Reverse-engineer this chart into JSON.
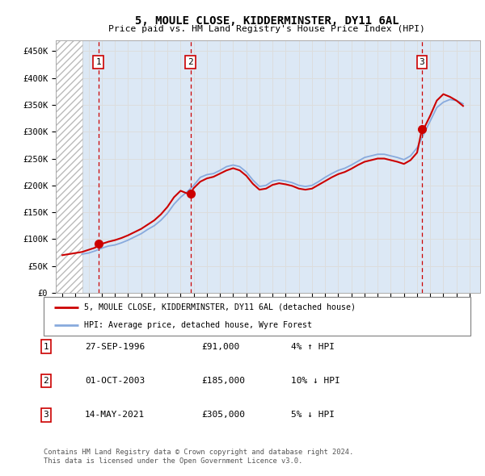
{
  "title": "5, MOULE CLOSE, KIDDERMINSTER, DY11 6AL",
  "subtitle": "Price paid vs. HM Land Registry's House Price Index (HPI)",
  "ylabel_ticks": [
    "£0",
    "£50K",
    "£100K",
    "£150K",
    "£200K",
    "£250K",
    "£300K",
    "£350K",
    "£400K",
    "£450K"
  ],
  "ytick_values": [
    0,
    50000,
    100000,
    150000,
    200000,
    250000,
    300000,
    350000,
    400000,
    450000
  ],
  "ylim": [
    0,
    470000
  ],
  "xlim_start": 1993.5,
  "xlim_end": 2025.8,
  "hatch_end_year": 1995.5,
  "grid_color": "#dddddd",
  "background_color": "#dce8f5",
  "transactions": [
    {
      "year": 1996.75,
      "price": 91000,
      "label": "1"
    },
    {
      "year": 2003.75,
      "price": 185000,
      "label": "2"
    },
    {
      "year": 2021.37,
      "price": 305000,
      "label": "3"
    }
  ],
  "transaction_line_color": "#cc0000",
  "transaction_dot_color": "#cc0000",
  "hpi_line_color": "#88aadd",
  "legend_label_property": "5, MOULE CLOSE, KIDDERMINSTER, DY11 6AL (detached house)",
  "legend_label_hpi": "HPI: Average price, detached house, Wyre Forest",
  "table_data": [
    {
      "num": "1",
      "date": "27-SEP-1996",
      "price": "£91,000",
      "hpi": "4% ↑ HPI"
    },
    {
      "num": "2",
      "date": "01-OCT-2003",
      "price": "£185,000",
      "hpi": "10% ↓ HPI"
    },
    {
      "num": "3",
      "date": "14-MAY-2021",
      "price": "£305,000",
      "hpi": "5% ↓ HPI"
    }
  ],
  "footer_line1": "Contains HM Land Registry data © Crown copyright and database right 2024.",
  "footer_line2": "This data is licensed under the Open Government Licence v3.0.",
  "hpi_data_x": [
    1995.5,
    1996.0,
    1996.5,
    1997.0,
    1997.5,
    1998.0,
    1998.5,
    1999.0,
    1999.5,
    2000.0,
    2000.5,
    2001.0,
    2001.5,
    2002.0,
    2002.5,
    2003.0,
    2003.5,
    2004.0,
    2004.5,
    2005.0,
    2005.5,
    2006.0,
    2006.5,
    2007.0,
    2007.5,
    2008.0,
    2008.5,
    2009.0,
    2009.5,
    2010.0,
    2010.5,
    2011.0,
    2011.5,
    2012.0,
    2012.5,
    2013.0,
    2013.5,
    2014.0,
    2014.5,
    2015.0,
    2015.5,
    2016.0,
    2016.5,
    2017.0,
    2017.5,
    2018.0,
    2018.5,
    2019.0,
    2019.5,
    2020.0,
    2020.5,
    2021.0,
    2021.5,
    2022.0,
    2022.5,
    2023.0,
    2023.5,
    2024.0,
    2024.5
  ],
  "hpi_data_y": [
    72000,
    74000,
    78000,
    83000,
    87000,
    89000,
    93000,
    98000,
    104000,
    110000,
    118000,
    125000,
    135000,
    148000,
    165000,
    178000,
    188000,
    200000,
    215000,
    220000,
    222000,
    228000,
    235000,
    238000,
    235000,
    225000,
    210000,
    198000,
    200000,
    208000,
    210000,
    208000,
    205000,
    200000,
    198000,
    200000,
    207000,
    215000,
    222000,
    228000,
    232000,
    238000,
    245000,
    252000,
    255000,
    258000,
    258000,
    255000,
    252000,
    248000,
    255000,
    270000,
    295000,
    320000,
    345000,
    355000,
    360000,
    358000,
    352000
  ],
  "property_data_x": [
    1994.0,
    1994.5,
    1995.0,
    1995.5,
    1996.0,
    1996.5,
    1996.75,
    1997.0,
    1997.5,
    1998.0,
    1998.5,
    1999.0,
    1999.5,
    2000.0,
    2000.5,
    2001.0,
    2001.5,
    2002.0,
    2002.5,
    2003.0,
    2003.5,
    2003.75,
    2004.0,
    2004.5,
    2005.0,
    2005.5,
    2006.0,
    2006.5,
    2007.0,
    2007.5,
    2008.0,
    2008.5,
    2009.0,
    2009.5,
    2010.0,
    2010.5,
    2011.0,
    2011.5,
    2012.0,
    2012.5,
    2013.0,
    2013.5,
    2014.0,
    2014.5,
    2015.0,
    2015.5,
    2016.0,
    2016.5,
    2017.0,
    2017.5,
    2018.0,
    2018.5,
    2019.0,
    2019.5,
    2020.0,
    2020.5,
    2021.0,
    2021.37,
    2021.5,
    2022.0,
    2022.5,
    2023.0,
    2023.5,
    2024.0,
    2024.5
  ],
  "property_data_y": [
    70000,
    72000,
    74000,
    76000,
    80000,
    84000,
    91000,
    91000,
    95000,
    98000,
    102000,
    107000,
    113000,
    119000,
    127000,
    135000,
    146000,
    160000,
    178000,
    190000,
    185000,
    185000,
    195000,
    207000,
    213000,
    216000,
    222000,
    228000,
    232000,
    228000,
    218000,
    203000,
    192000,
    194000,
    201000,
    204000,
    202000,
    199000,
    194000,
    192000,
    194000,
    201000,
    208000,
    215000,
    221000,
    225000,
    231000,
    238000,
    244000,
    247000,
    250000,
    250000,
    247000,
    244000,
    240000,
    247000,
    261000,
    305000,
    305000,
    330000,
    358000,
    370000,
    365000,
    358000,
    348000
  ]
}
